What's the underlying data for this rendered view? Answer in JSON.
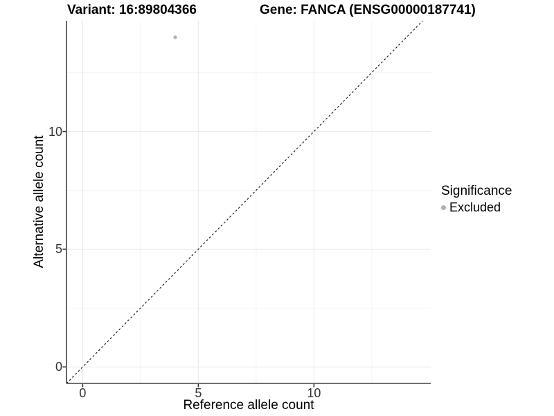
{
  "chart_data": {
    "type": "scatter",
    "title_variant": "Variant: 16:89804366",
    "title_gene": "Gene: FANCA (ENSG00000187741)",
    "xlabel": "Reference allele count",
    "ylabel": "Alternative allele count",
    "xlim": [
      -0.7,
      15.05
    ],
    "ylim": [
      -0.7,
      14.7
    ],
    "x_ticks": [
      0,
      5,
      10
    ],
    "y_ticks": [
      0,
      5,
      10
    ],
    "x_tick_labels": [
      "0",
      "5",
      "10"
    ],
    "y_tick_labels": [
      "0",
      "5",
      "10"
    ],
    "x_minor_ticks": [
      2.5,
      7.5,
      12.5
    ],
    "y_minor_ticks": [
      2.5,
      7.5,
      12.5
    ],
    "grid": true,
    "series": [
      {
        "name": "Excluded",
        "color": "#b3b3b3",
        "points": [
          {
            "x": 4,
            "y": 14
          }
        ]
      }
    ],
    "abline": {
      "slope": 1,
      "intercept": 0,
      "style": "dashed",
      "color": "#111111"
    },
    "legend": {
      "position": "right",
      "title": "Significance",
      "items": [
        {
          "label": "Excluded",
          "color": "#b0b0b0"
        }
      ]
    },
    "style": {
      "point_radius": 2.6,
      "legend_dot_radius": 3.5,
      "grid_major_color": "#e8e8e8",
      "grid_minor_color": "#f4f4f4",
      "axis_line_color": "#404040",
      "tick_color": "#333333",
      "tick_label_color": "#333333"
    }
  }
}
